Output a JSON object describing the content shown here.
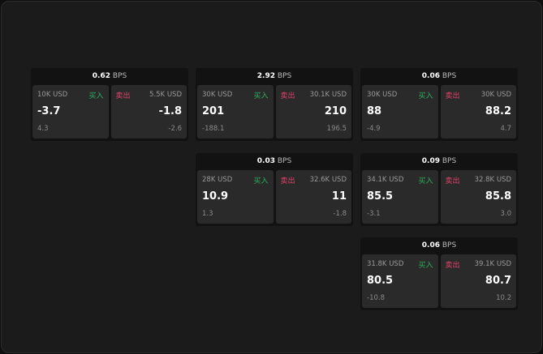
{
  "labels": {
    "buy": "买入",
    "sell": "卖出",
    "unit": "BPS"
  },
  "colors": {
    "buy": "#2fae5f",
    "sell": "#e0416b"
  },
  "cards": [
    {
      "spread": "0.62",
      "bid_size": "10K USD",
      "bid": "-3.7",
      "bid_chg": "4.3",
      "ask_size": "5.5K USD",
      "ask": "-1.8",
      "ask_chg": "-2.6"
    },
    {
      "spread": "2.92",
      "bid_size": "30K USD",
      "bid": "201",
      "bid_chg": "-188.1",
      "ask_size": "30.1K USD",
      "ask": "210",
      "ask_chg": "196.5"
    },
    {
      "spread": "0.06",
      "bid_size": "30K USD",
      "bid": "88",
      "bid_chg": "-4.9",
      "ask_size": "30K USD",
      "ask": "88.2",
      "ask_chg": "4.7"
    },
    {
      "spread": "0.03",
      "bid_size": "28K USD",
      "bid": "10.9",
      "bid_chg": "1.3",
      "ask_size": "32.6K USD",
      "ask": "11",
      "ask_chg": "-1.8"
    },
    {
      "spread": "0.09",
      "bid_size": "34.1K USD",
      "bid": "85.5",
      "bid_chg": "-3.1",
      "ask_size": "32.8K USD",
      "ask": "85.8",
      "ask_chg": "3.0"
    },
    {
      "spread": "0.06",
      "bid_size": "31.8K USD",
      "bid": "80.5",
      "bid_chg": "-10.8",
      "ask_size": "39.1K USD",
      "ask": "80.7",
      "ask_chg": "10.2"
    }
  ]
}
